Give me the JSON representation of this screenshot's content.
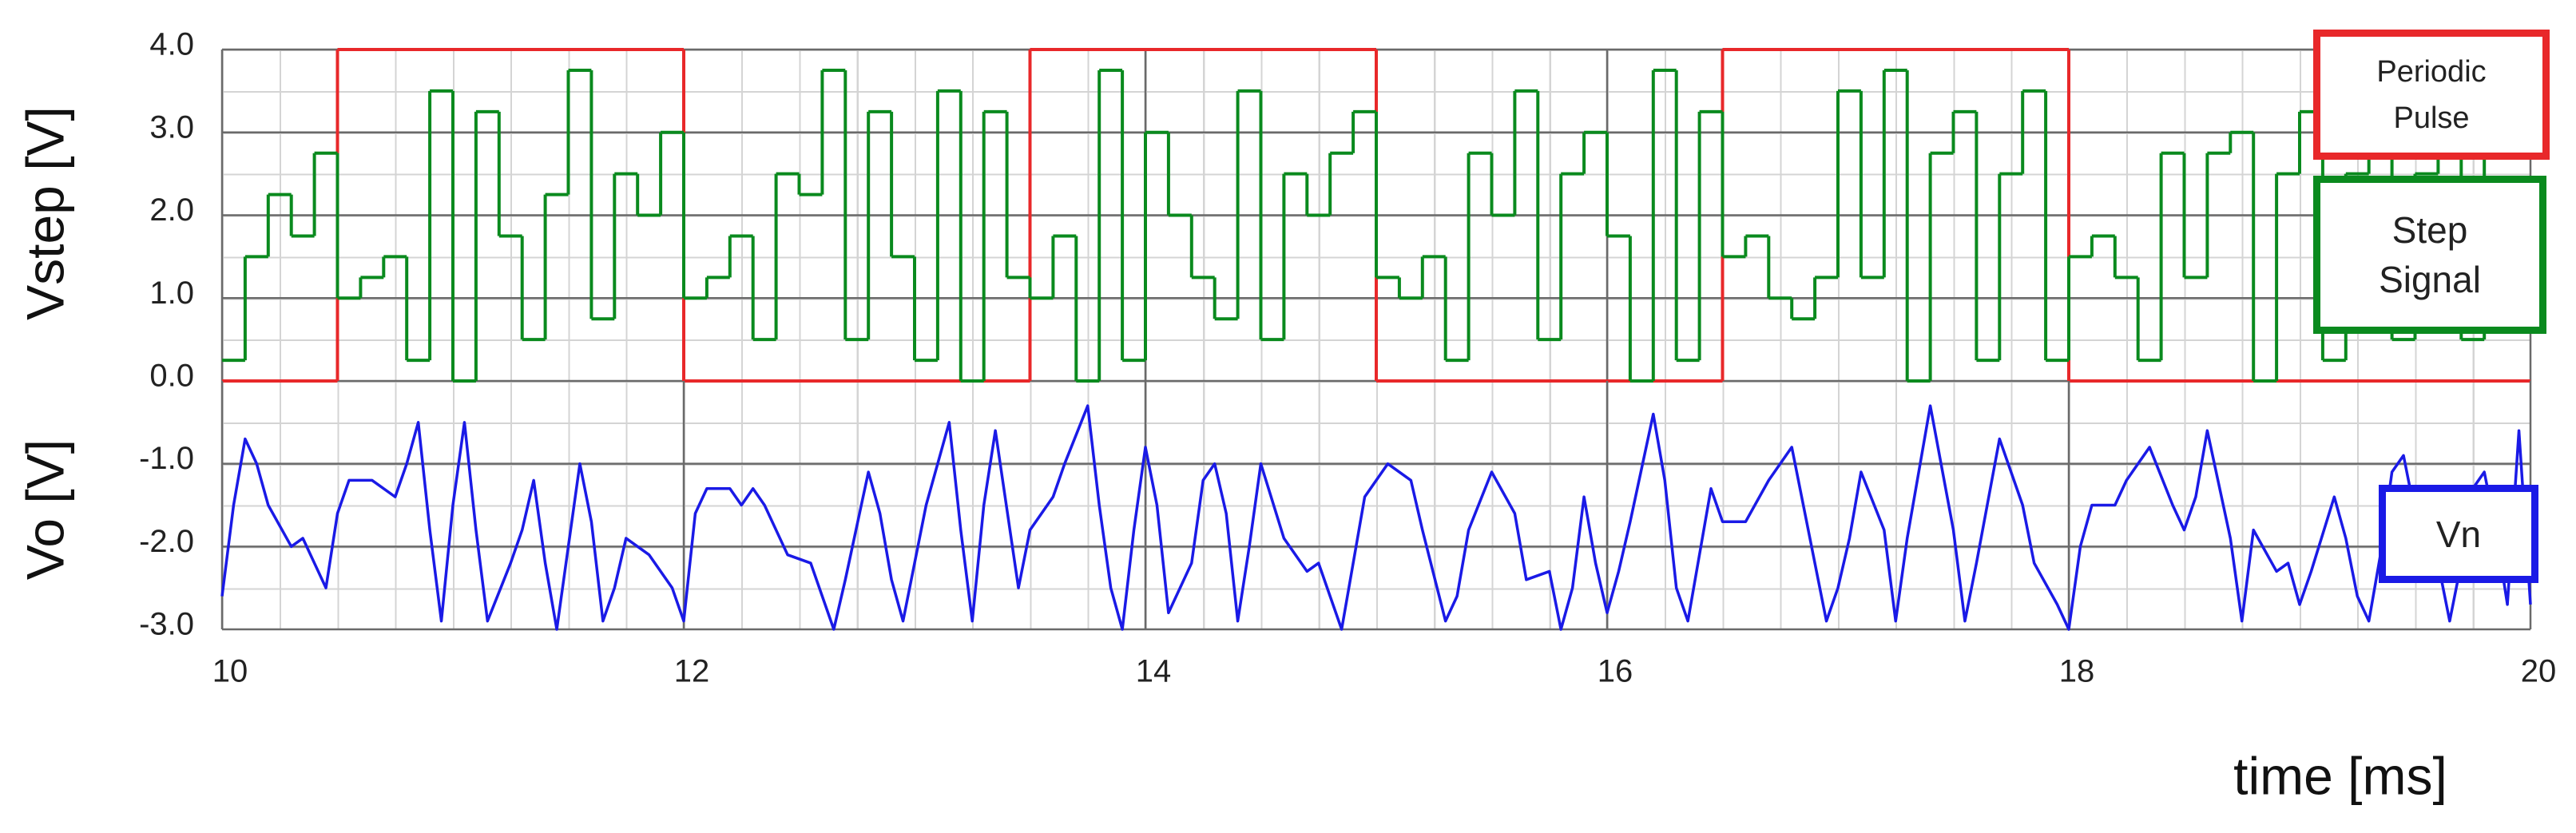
{
  "chart_data": [
    {
      "type": "step",
      "ylabel": "Vstep [V]",
      "xlim": [
        10,
        20
      ],
      "xticks": [
        10,
        12,
        14,
        16,
        18,
        20
      ],
      "ylim": [
        0,
        4
      ],
      "yticks": [
        {
          "value": 0,
          "label": "0.0"
        },
        {
          "value": 1,
          "label": "1.0"
        },
        {
          "value": 2,
          "label": "2.0"
        },
        {
          "value": 3,
          "label": "3.0"
        },
        {
          "value": 4,
          "label": "4.0"
        }
      ],
      "grid": true,
      "series": [
        {
          "name": "Periodic Pulse",
          "color": "#e8282a",
          "x": [
            10,
            10.5,
            12,
            13.5,
            15,
            16.5,
            18
          ],
          "values": [
            0,
            4,
            0,
            4,
            0,
            4,
            0
          ]
        },
        {
          "name": "Step Signal",
          "color": "#0a8a1e",
          "x": [
            10.0,
            10.1,
            10.2,
            10.3,
            10.4,
            10.5,
            10.6,
            10.7,
            10.8,
            10.9,
            11.0,
            11.1,
            11.2,
            11.3,
            11.4,
            11.5,
            11.6,
            11.7,
            11.8,
            11.9,
            12.0,
            12.1,
            12.2,
            12.3,
            12.4,
            12.5,
            12.6,
            12.7,
            12.8,
            12.9,
            13.0,
            13.1,
            13.2,
            13.3,
            13.4,
            13.5,
            13.6,
            13.7,
            13.8,
            13.9,
            14.0,
            14.1,
            14.2,
            14.3,
            14.4,
            14.5,
            14.6,
            14.7,
            14.8,
            14.9,
            15.0,
            15.1,
            15.2,
            15.3,
            15.4,
            15.5,
            15.6,
            15.7,
            15.8,
            15.9,
            16.0,
            16.1,
            16.2,
            16.3,
            16.4,
            16.5,
            16.6,
            16.7,
            16.8,
            16.9,
            17.0,
            17.1,
            17.2,
            17.3,
            17.4,
            17.5,
            17.6,
            17.7,
            17.8,
            17.9,
            18.0,
            18.1,
            18.2,
            18.3,
            18.4,
            18.5,
            18.6,
            18.7,
            18.8,
            18.9,
            19.0,
            19.1,
            19.2,
            19.3,
            19.4,
            19.5,
            19.6,
            19.7,
            19.8,
            19.9
          ],
          "values": [
            0.25,
            1.5,
            2.25,
            1.75,
            2.75,
            1.0,
            1.25,
            1.5,
            0.25,
            3.5,
            0,
            3.25,
            1.75,
            0.5,
            2.25,
            3.75,
            0.75,
            2.5,
            2.0,
            3.0,
            1.0,
            1.25,
            1.75,
            0.5,
            2.5,
            2.25,
            3.75,
            0.5,
            3.25,
            1.5,
            0.25,
            3.5,
            0,
            3.25,
            1.25,
            1.0,
            1.75,
            0,
            3.75,
            0.25,
            3.0,
            2.0,
            1.25,
            0.75,
            3.5,
            0.5,
            2.5,
            2.0,
            2.75,
            3.25,
            1.25,
            1.0,
            1.5,
            0.25,
            2.75,
            2.0,
            3.5,
            0.5,
            2.5,
            3.0,
            1.75,
            0,
            3.75,
            0.25,
            3.25,
            1.5,
            1.75,
            1.0,
            0.75,
            1.25,
            3.5,
            1.25,
            3.75,
            0,
            2.75,
            3.25,
            0.25,
            2.5,
            3.5,
            0.25,
            1.5,
            1.75,
            1.25,
            0.25,
            2.75,
            1.25,
            2.75,
            3.0,
            0,
            2.5,
            3.25,
            0.25,
            2.5,
            3.75,
            0.5,
            2.5,
            3.25,
            0.5,
            3.0,
            3.5
          ]
        }
      ]
    },
    {
      "type": "line",
      "ylabel": "Vo [V]",
      "xlabel": "time [ms]",
      "xlim": [
        10,
        20
      ],
      "xticks": [
        10,
        12,
        14,
        16,
        18,
        20
      ],
      "ylim": [
        -3,
        0
      ],
      "yticks": [
        {
          "value": -1,
          "label": "-1.0"
        },
        {
          "value": -2,
          "label": "-2.0"
        },
        {
          "value": -3,
          "label": "-3.0"
        }
      ],
      "grid": true,
      "series": [
        {
          "name": "Vn",
          "color": "#1a1ae6",
          "x": [
            10.0,
            10.05,
            10.1,
            10.15,
            10.2,
            10.3,
            10.35,
            10.4,
            10.45,
            10.5,
            10.55,
            10.65,
            10.75,
            10.8,
            10.85,
            10.9,
            10.95,
            11.0,
            11.05,
            11.1,
            11.15,
            11.25,
            11.3,
            11.35,
            11.4,
            11.45,
            11.55,
            11.6,
            11.65,
            11.7,
            11.75,
            11.85,
            11.95,
            12.0,
            12.05,
            12.1,
            12.2,
            12.25,
            12.3,
            12.35,
            12.45,
            12.55,
            12.65,
            12.7,
            12.8,
            12.85,
            12.9,
            12.95,
            13.05,
            13.1,
            13.15,
            13.2,
            13.25,
            13.3,
            13.35,
            13.45,
            13.5,
            13.6,
            13.65,
            13.75,
            13.8,
            13.85,
            13.9,
            13.95,
            14.0,
            14.05,
            14.1,
            14.2,
            14.25,
            14.3,
            14.35,
            14.4,
            14.45,
            14.5,
            14.6,
            14.7,
            14.75,
            14.85,
            14.95,
            15.05,
            15.15,
            15.2,
            15.3,
            15.35,
            15.4,
            15.5,
            15.6,
            15.65,
            15.75,
            15.8,
            15.85,
            15.9,
            15.95,
            16.0,
            16.05,
            16.1,
            16.2,
            16.25,
            16.3,
            16.35,
            16.45,
            16.5,
            16.6,
            16.7,
            16.8,
            16.85,
            16.95,
            17.0,
            17.05,
            17.1,
            17.2,
            17.25,
            17.3,
            17.4,
            17.5,
            17.55,
            17.6,
            17.7,
            17.8,
            17.85,
            17.95,
            18.0,
            18.05,
            18.1,
            18.2,
            18.25,
            18.35,
            18.45,
            18.5,
            18.55,
            18.6,
            18.7,
            18.75,
            18.8,
            18.9,
            18.95,
            19.0,
            19.05,
            19.15,
            19.2,
            19.25,
            19.3,
            19.35,
            19.4,
            19.45,
            19.5,
            19.6,
            19.65,
            19.7,
            19.75,
            19.8,
            19.85,
            19.9,
            19.95,
            20.0
          ],
          "values": [
            -2.6,
            -1.5,
            -0.7,
            -1.0,
            -1.5,
            -2.0,
            -1.9,
            -2.2,
            -2.5,
            -1.6,
            -1.2,
            -1.2,
            -1.4,
            -1.0,
            -0.5,
            -1.8,
            -2.9,
            -1.5,
            -0.5,
            -1.8,
            -2.9,
            -2.2,
            -1.8,
            -1.2,
            -2.2,
            -3.0,
            -1.0,
            -1.7,
            -2.9,
            -2.5,
            -1.9,
            -2.1,
            -2.5,
            -2.9,
            -1.6,
            -1.3,
            -1.3,
            -1.5,
            -1.3,
            -1.5,
            -2.1,
            -2.2,
            -3.0,
            -2.4,
            -1.1,
            -1.6,
            -2.4,
            -2.9,
            -1.5,
            -1.0,
            -0.5,
            -1.8,
            -2.9,
            -1.5,
            -0.6,
            -2.5,
            -1.8,
            -1.4,
            -1.0,
            -0.3,
            -1.5,
            -2.5,
            -3.0,
            -1.8,
            -0.8,
            -1.5,
            -2.8,
            -2.2,
            -1.2,
            -1.0,
            -1.6,
            -2.9,
            -2.0,
            -1.0,
            -1.9,
            -2.3,
            -2.2,
            -3.0,
            -1.4,
            -1.0,
            -1.2,
            -1.8,
            -2.9,
            -2.6,
            -1.8,
            -1.1,
            -1.6,
            -2.4,
            -2.3,
            -3.0,
            -2.5,
            -1.4,
            -2.2,
            -2.8,
            -2.3,
            -1.7,
            -0.4,
            -1.2,
            -2.5,
            -2.9,
            -1.3,
            -1.7,
            -1.7,
            -1.2,
            -0.8,
            -1.5,
            -2.9,
            -2.5,
            -1.9,
            -1.1,
            -1.8,
            -2.9,
            -1.9,
            -0.3,
            -1.8,
            -2.9,
            -2.2,
            -0.7,
            -1.5,
            -2.2,
            -2.7,
            -3.0,
            -2.0,
            -1.5,
            -1.5,
            -1.2,
            -0.8,
            -1.5,
            -1.8,
            -1.4,
            -0.6,
            -1.9,
            -2.9,
            -1.8,
            -2.3,
            -2.2,
            -2.7,
            -2.3,
            -1.4,
            -1.9,
            -2.6,
            -2.9,
            -2.1,
            -1.1,
            -0.9,
            -1.6,
            -2.2,
            -2.9,
            -2.2,
            -1.3,
            -1.1,
            -1.8,
            -2.7,
            -0.6,
            -2.7
          ]
        }
      ]
    }
  ]
}
